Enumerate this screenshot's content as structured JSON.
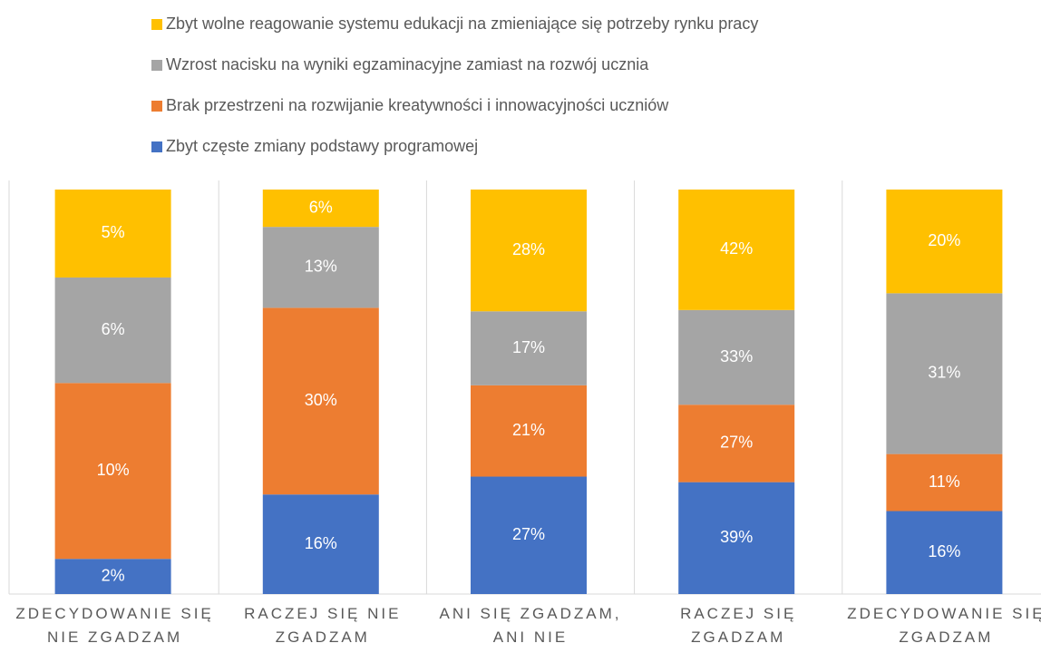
{
  "chart_data": {
    "type": "bar",
    "stacked": "percent",
    "categories": [
      "ZDECYDOWANIE SIĘ NIE ZGADZAM",
      "RACZEJ SIĘ NIE ZGADZAM",
      "ANI SIĘ ZGADZAM, ANI NIE",
      "RACZEJ SIĘ ZGADZAM",
      "ZDECYDOWANIE SIĘ ZGADZAM"
    ],
    "series": [
      {
        "name": "Zbyt częste zmiany podstawy programowej",
        "color": "#4472c4",
        "values": [
          2,
          16,
          27,
          39,
          16
        ],
        "value_labels": [
          "2%",
          "16%",
          "27%",
          "39%",
          "16%"
        ]
      },
      {
        "name": "Brak przestrzeni na rozwijanie kreatywności i innowacyjności uczniów",
        "color": "#ed7d31",
        "values": [
          10,
          30,
          21,
          27,
          11
        ],
        "value_labels": [
          "10%",
          "30%",
          "21%",
          "27%",
          "11%"
        ]
      },
      {
        "name": "Wzrost nacisku na wyniki egzaminacyjne zamiast na rozwój ucznia",
        "color": "#a5a5a5",
        "values": [
          6,
          13,
          17,
          33,
          31
        ],
        "value_labels": [
          "6%",
          "13%",
          "17%",
          "33%",
          "31%"
        ]
      },
      {
        "name": "Zbyt wolne reagowanie systemu edukacji na zmieniające się potrzeby rynku pracy",
        "color": "#ffc000",
        "values": [
          5,
          6,
          28,
          42,
          20
        ],
        "value_labels": [
          "5%",
          "6%",
          "28%",
          "42%",
          "20%"
        ]
      }
    ]
  }
}
